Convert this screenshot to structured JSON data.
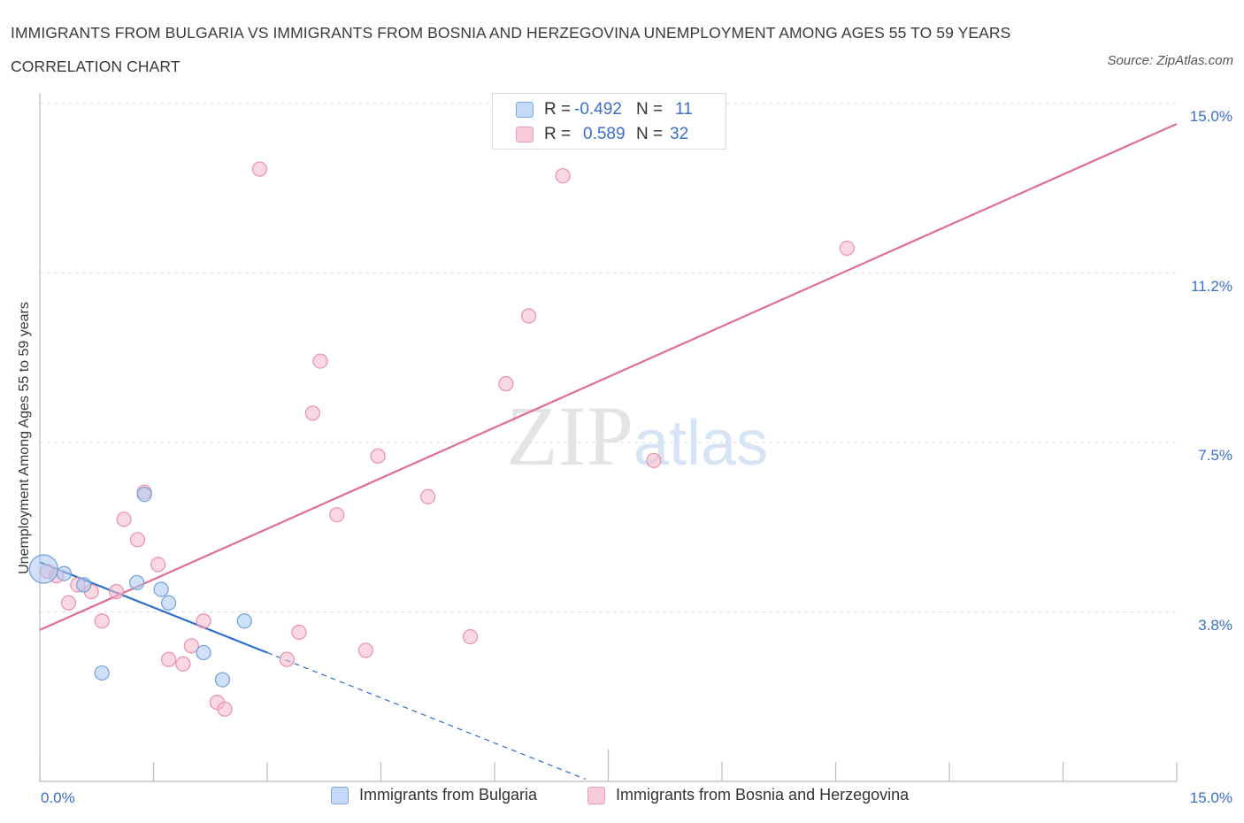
{
  "chart_data": {
    "type": "scatter",
    "title": "IMMIGRANTS FROM BULGARIA VS IMMIGRANTS FROM BOSNIA AND HERZEGOVINA UNEMPLOYMENT AMONG AGES 55 TO 59 YEARS CORRELATION CHART",
    "source": "Source: ZipAtlas.com",
    "ylabel": "Unemployment Among Ages 55 to 59 years",
    "xlim": [
      0,
      15
    ],
    "ylim": [
      0,
      15
    ],
    "x_tick_labels": [
      "0.0%",
      "15.0%"
    ],
    "y_ticks": [
      {
        "value": 15.0,
        "label": "15.0%"
      },
      {
        "value": 11.25,
        "label": "11.2%"
      },
      {
        "value": 7.5,
        "label": "7.5%"
      },
      {
        "value": 3.75,
        "label": "3.8%"
      }
    ],
    "watermark": "ZIPatlas",
    "legend": {
      "rows": [
        {
          "r_label": "R =",
          "r_value": "-0.492",
          "n_label": "N =",
          "n_value": "11",
          "color": "#a9c8f0"
        },
        {
          "r_label": "R =",
          "r_value": "0.589",
          "n_label": "N =",
          "n_value": "32",
          "color": "#f5b8cb"
        }
      ]
    },
    "series": [
      {
        "name": "Immigrants from Bulgaria",
        "color": "#a9c8f0",
        "stroke": "#6f9fdc",
        "line_color": "#2f6fc9",
        "trend": {
          "x0": 0,
          "y0": 4.85,
          "x1": 3.0,
          "y1": 2.85,
          "dash_to_x": 7.2
        },
        "points": [
          {
            "x": 0.05,
            "y": 4.7,
            "big": true
          },
          {
            "x": 0.32,
            "y": 4.6
          },
          {
            "x": 0.58,
            "y": 4.35
          },
          {
            "x": 1.38,
            "y": 6.35
          },
          {
            "x": 1.28,
            "y": 4.4
          },
          {
            "x": 1.6,
            "y": 4.25
          },
          {
            "x": 1.7,
            "y": 3.95
          },
          {
            "x": 2.7,
            "y": 3.55
          },
          {
            "x": 0.82,
            "y": 2.4
          },
          {
            "x": 2.16,
            "y": 2.85
          },
          {
            "x": 2.41,
            "y": 2.25
          }
        ]
      },
      {
        "name": "Immigrants from Bosnia and Herzegovina",
        "color": "#f5b8cb",
        "stroke": "#ea8fab",
        "line_color": "#e06d95",
        "trend": {
          "x0": 0,
          "y0": 3.35,
          "x1": 15.0,
          "y1": 14.55
        },
        "points": [
          {
            "x": 0.1,
            "y": 4.65
          },
          {
            "x": 0.22,
            "y": 4.55
          },
          {
            "x": 0.38,
            "y": 3.95
          },
          {
            "x": 0.5,
            "y": 4.35
          },
          {
            "x": 0.68,
            "y": 4.2
          },
          {
            "x": 0.82,
            "y": 3.55
          },
          {
            "x": 1.01,
            "y": 4.2
          },
          {
            "x": 1.11,
            "y": 5.8
          },
          {
            "x": 1.29,
            "y": 5.35
          },
          {
            "x": 1.38,
            "y": 6.4
          },
          {
            "x": 1.56,
            "y": 4.8
          },
          {
            "x": 1.7,
            "y": 2.7
          },
          {
            "x": 1.89,
            "y": 2.6
          },
          {
            "x": 2.0,
            "y": 3.0
          },
          {
            "x": 2.16,
            "y": 3.55
          },
          {
            "x": 2.34,
            "y": 1.75
          },
          {
            "x": 2.44,
            "y": 1.6
          },
          {
            "x": 2.9,
            "y": 13.55
          },
          {
            "x": 3.26,
            "y": 2.7
          },
          {
            "x": 3.42,
            "y": 3.3
          },
          {
            "x": 3.6,
            "y": 8.15
          },
          {
            "x": 3.7,
            "y": 9.3
          },
          {
            "x": 3.92,
            "y": 5.9
          },
          {
            "x": 4.3,
            "y": 2.9
          },
          {
            "x": 4.46,
            "y": 7.2
          },
          {
            "x": 5.12,
            "y": 6.3
          },
          {
            "x": 5.68,
            "y": 3.2
          },
          {
            "x": 6.15,
            "y": 8.8
          },
          {
            "x": 6.45,
            "y": 10.3
          },
          {
            "x": 6.9,
            "y": 13.4
          },
          {
            "x": 8.1,
            "y": 7.1
          },
          {
            "x": 10.65,
            "y": 11.8
          }
        ]
      }
    ]
  }
}
